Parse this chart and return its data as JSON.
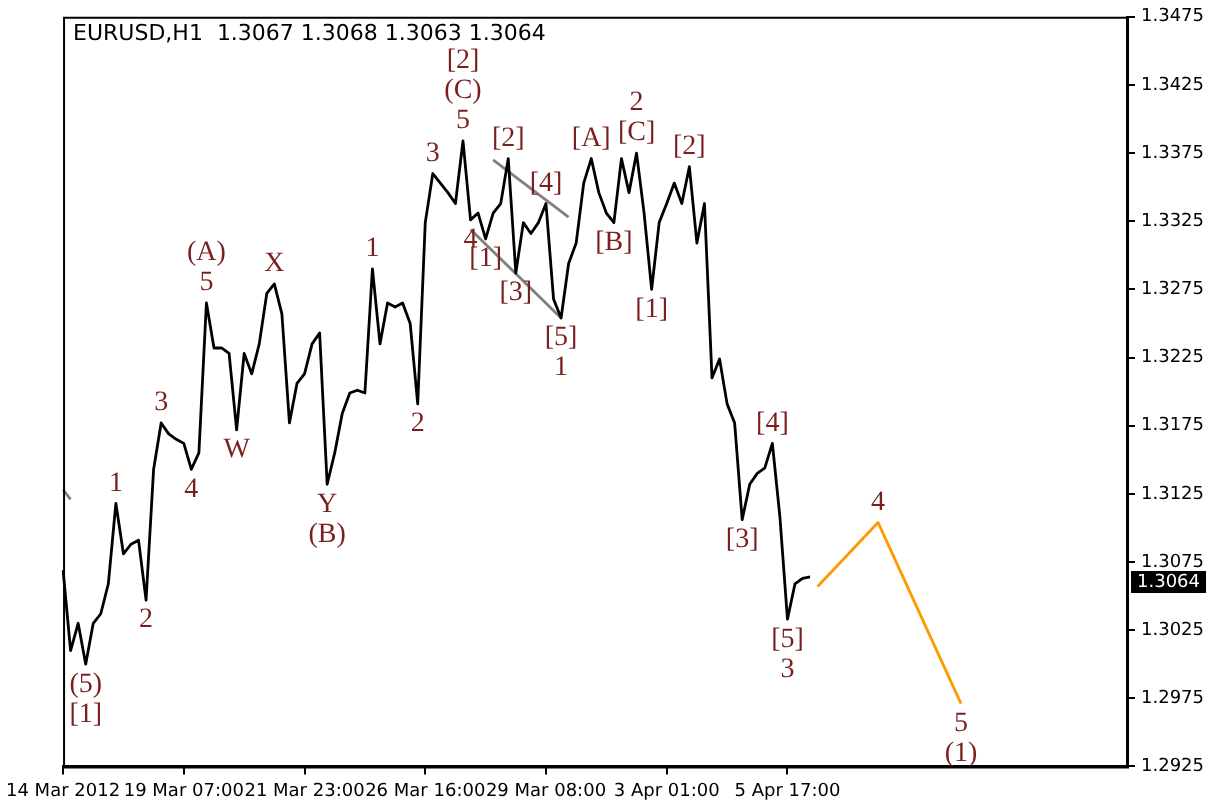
{
  "chart_data": {
    "type": "line",
    "title": "EURUSD,H1  1.3067 1.3068 1.3063 1.3064",
    "categories": [
      "14 Mar 2012",
      null,
      null,
      null,
      null,
      null,
      null,
      null,
      null,
      null,
      null,
      null,
      null,
      null,
      null,
      null,
      "19 Mar 07:00",
      null,
      null,
      null,
      null,
      null,
      null,
      null,
      null,
      null,
      null,
      null,
      null,
      null,
      null,
      null,
      "21 Mar 23:00",
      null,
      null,
      null,
      null,
      null,
      null,
      null,
      null,
      null,
      null,
      null,
      null,
      null,
      null,
      null,
      "26 Mar 16:00",
      null,
      null,
      null,
      null,
      null,
      null,
      null,
      null,
      null,
      null,
      null,
      null,
      null,
      null,
      null,
      "29 Mar 08:00",
      null,
      null,
      null,
      null,
      null,
      null,
      null,
      null,
      null,
      null,
      null,
      null,
      null,
      null,
      null,
      "3 Apr 01:00",
      null,
      null,
      null,
      null,
      null,
      null,
      null,
      null,
      null,
      null,
      null,
      null,
      null,
      null,
      null,
      "5 Apr 17:00",
      null,
      null,
      null,
      null,
      null,
      null,
      null,
      null,
      null,
      null,
      null,
      null,
      null,
      null,
      null,
      null,
      null,
      null,
      null,
      null,
      null,
      null,
      null,
      null,
      null,
      null,
      null,
      null,
      null,
      null,
      null,
      null,
      null,
      null,
      null,
      null,
      null,
      null,
      null,
      null,
      null,
      null,
      null,
      null,
      null
    ],
    "ylim": [
      1.2925,
      1.3475
    ],
    "yticks": [
      1.2925,
      1.2975,
      1.3025,
      1.3075,
      1.3125,
      1.3175,
      1.3225,
      1.3275,
      1.3325,
      1.3375,
      1.3425,
      1.3475
    ],
    "grid": false,
    "legend": false,
    "marker": "none",
    "line_style": "solid",
    "series": [
      {
        "color": "#000000",
        "values": [
          1.3069,
          1.301,
          1.303,
          1.3,
          1.303,
          1.3037,
          1.3059,
          1.3118,
          1.3081,
          1.3088,
          1.3091,
          1.3047,
          1.3143,
          1.3177,
          1.3169,
          1.3165,
          1.3162,
          1.3143,
          1.3155,
          1.3265,
          1.3232,
          1.3232,
          1.3228,
          1.3172,
          1.3228,
          1.3213,
          1.3235,
          1.3272,
          1.3279,
          1.3257,
          1.3177,
          1.3206,
          1.3213,
          1.3235,
          1.3243,
          1.3132,
          1.3155,
          1.3184,
          1.3199,
          1.3201,
          1.3199,
          1.329,
          1.3235,
          1.3265,
          1.3262,
          1.3265,
          1.325,
          1.3191,
          1.3324,
          1.336,
          1.3353,
          1.3346,
          1.3338,
          1.3384,
          1.3326,
          1.3331,
          1.3312,
          1.3331,
          1.3338,
          1.3371,
          1.3287,
          1.3324,
          1.3316,
          1.3324,
          1.3338,
          1.3268,
          1.3254,
          1.3294,
          1.3309,
          1.3353,
          1.3371,
          1.3346,
          1.3331,
          1.3324,
          1.3371,
          1.3346,
          1.3375,
          1.3331,
          1.3275,
          1.3324,
          1.3338,
          1.3353,
          1.3338,
          1.3365,
          1.3309,
          1.3338,
          1.321,
          1.3224,
          1.3191,
          1.3177,
          1.3106,
          1.3132,
          1.314,
          1.3144,
          1.3162,
          1.3108,
          1.3033,
          1.3059,
          1.3063,
          1.3064,
          null,
          null,
          null,
          null,
          null,
          null,
          null,
          null,
          null,
          null,
          null,
          null,
          null,
          null,
          null,
          null,
          null,
          null,
          null,
          null,
          null,
          null,
          null,
          null,
          null,
          null,
          null,
          null,
          null,
          null,
          null,
          null,
          null,
          null,
          null,
          null,
          null,
          null,
          null,
          null,
          null,
          null
        ]
      },
      {
        "color": "#ff9900",
        "values": [
          null,
          null,
          null,
          null,
          null,
          null,
          null,
          null,
          null,
          null,
          null,
          null,
          null,
          null,
          null,
          null,
          null,
          null,
          null,
          null,
          null,
          null,
          null,
          null,
          null,
          null,
          null,
          null,
          null,
          null,
          null,
          null,
          null,
          null,
          null,
          null,
          null,
          null,
          null,
          null,
          null,
          null,
          null,
          null,
          null,
          null,
          null,
          null,
          null,
          null,
          null,
          null,
          null,
          null,
          null,
          null,
          null,
          null,
          null,
          null,
          null,
          null,
          null,
          null,
          null,
          null,
          null,
          null,
          null,
          null,
          null,
          null,
          null,
          null,
          null,
          null,
          null,
          null,
          null,
          null,
          null,
          null,
          null,
          null,
          null,
          null,
          null,
          null,
          null,
          null,
          null,
          null,
          null,
          null,
          null,
          null,
          null,
          null,
          null,
          null,
          1.3057,
          null,
          null,
          null,
          null,
          null,
          null,
          null,
          1.3104,
          null,
          null,
          null,
          null,
          null,
          null,
          null,
          null,
          null,
          null,
          1.2971,
          null,
          null,
          null,
          null,
          null,
          null,
          null,
          null,
          null,
          null,
          null,
          null,
          null,
          null,
          null,
          null,
          null,
          null,
          null,
          null,
          null,
          null
        ]
      },
      {
        "color": "#808080",
        "values": [
          null,
          null,
          null,
          null,
          null,
          null,
          null,
          null,
          null,
          null,
          null,
          null,
          null,
          null,
          null,
          null,
          null,
          null,
          null,
          null,
          null,
          null,
          null,
          null,
          null,
          null,
          null,
          null,
          null,
          null,
          null,
          null,
          null,
          null,
          null,
          null,
          null,
          null,
          null,
          null,
          null,
          null,
          null,
          null,
          null,
          null,
          null,
          null,
          null,
          null,
          null,
          null,
          null,
          null,
          null,
          null,
          null,
          1.337,
          null,
          null,
          null,
          null,
          null,
          null,
          null,
          null,
          null,
          1.3328,
          null,
          null,
          null,
          null,
          null,
          null,
          null,
          null,
          null,
          null,
          null,
          null,
          null,
          null,
          null,
          null,
          null,
          null,
          null,
          null,
          null,
          null,
          null,
          null,
          null,
          null,
          null,
          null,
          null,
          null,
          null,
          null,
          null,
          null,
          null,
          null,
          null,
          null,
          null,
          null,
          null,
          null,
          null,
          null,
          null,
          null,
          null,
          null,
          null,
          null,
          null,
          null,
          null,
          null,
          null,
          null,
          null,
          null,
          null,
          null,
          null,
          null,
          null,
          null,
          null,
          null,
          null,
          null,
          null,
          null,
          null,
          null,
          null,
          null
        ]
      },
      {
        "color": "#808080",
        "values": [
          null,
          null,
          null,
          null,
          null,
          null,
          null,
          null,
          null,
          null,
          null,
          null,
          null,
          null,
          null,
          null,
          null,
          null,
          null,
          null,
          null,
          null,
          null,
          null,
          null,
          null,
          null,
          null,
          null,
          null,
          null,
          null,
          null,
          null,
          null,
          null,
          null,
          null,
          null,
          null,
          null,
          null,
          null,
          null,
          null,
          null,
          null,
          null,
          null,
          null,
          null,
          null,
          null,
          null,
          1.3319,
          null,
          null,
          null,
          null,
          null,
          null,
          null,
          null,
          null,
          null,
          null,
          1.3254,
          null,
          null,
          null,
          null,
          null,
          null,
          null,
          null,
          null,
          null,
          null,
          null,
          null,
          null,
          null,
          null,
          null,
          null,
          null,
          null,
          null,
          null,
          null,
          null,
          null,
          null,
          null,
          null,
          null,
          null,
          null,
          null,
          null,
          null,
          null,
          null,
          null,
          null,
          null,
          null,
          null,
          null,
          null,
          null,
          null,
          null,
          null,
          null,
          null,
          null,
          null,
          null,
          null,
          null,
          null,
          null,
          null,
          null,
          null,
          null,
          null,
          null,
          null,
          null,
          null,
          null,
          null,
          null,
          null,
          null,
          null,
          null,
          null,
          null,
          null
        ]
      },
      {
        "color": "#808080",
        "values": [
          1.3128,
          1.3121,
          null,
          null,
          null,
          null,
          null,
          null,
          null,
          null,
          null,
          null,
          null,
          null,
          null,
          null,
          null,
          null,
          null,
          null,
          null,
          null,
          null,
          null,
          null,
          null,
          null,
          null,
          null,
          null,
          null,
          null,
          null,
          null,
          null,
          null,
          null,
          null,
          null,
          null,
          null,
          null,
          null,
          null,
          null,
          null,
          null,
          null,
          null,
          null,
          null,
          null,
          null,
          null,
          null,
          null,
          null,
          null,
          null,
          null,
          null,
          null,
          null,
          null,
          null,
          null,
          null,
          null,
          null,
          null,
          null,
          null,
          null,
          null,
          null,
          null,
          null,
          null,
          null,
          null,
          null,
          null,
          null,
          null,
          null,
          null,
          null,
          null,
          null,
          null,
          null,
          null,
          null,
          null,
          null,
          null,
          null,
          null,
          null,
          null,
          null,
          null,
          null,
          null,
          null,
          null,
          null,
          null,
          null,
          null,
          null,
          null,
          null,
          null,
          null,
          null,
          null,
          null,
          null,
          null,
          null,
          null,
          null,
          null,
          null,
          null,
          null,
          null,
          null,
          null,
          null,
          null,
          null,
          null,
          null,
          null,
          null,
          null,
          null,
          null,
          null,
          null
        ]
      }
    ],
    "annotations": [
      {
        "text": "(5)",
        "y": 1.3
      },
      {
        "text": "[1]",
        "y": 1.3
      },
      {
        "text": "1",
        "y": 1.3118
      },
      {
        "text": "2",
        "y": 1.3047
      },
      {
        "text": "3",
        "y": 1.3177
      },
      {
        "text": "4",
        "y": 1.3143
      },
      {
        "text": "5",
        "y": 1.3265
      },
      {
        "text": "(A)",
        "y": 1.3265
      },
      {
        "text": "W",
        "y": 1.3172
      },
      {
        "text": "X",
        "y": 1.3279
      },
      {
        "text": "Y",
        "y": 1.3132
      },
      {
        "text": "(B)",
        "y": 1.3132
      },
      {
        "text": "1",
        "y": 1.329
      },
      {
        "text": "2",
        "y": 1.3191
      },
      {
        "text": "3",
        "y": 1.336
      },
      {
        "text": "5",
        "y": 1.3384
      },
      {
        "text": "(C)",
        "y": 1.3384
      },
      {
        "text": "[2]",
        "y": 1.3384
      },
      {
        "text": "4",
        "y": 1.3326
      },
      {
        "text": "[1]",
        "y": 1.3312
      },
      {
        "text": "[2]",
        "y": 1.3371
      },
      {
        "text": "[3]",
        "y": 1.3287
      },
      {
        "text": "[4]",
        "y": 1.3338
      },
      {
        "text": "[5]",
        "y": 1.3254
      },
      {
        "text": "1",
        "y": 1.3254
      },
      {
        "text": "[A]",
        "y": 1.3371
      },
      {
        "text": "[B]",
        "y": 1.3324
      },
      {
        "text": "[C]",
        "y": 1.3375
      },
      {
        "text": "2",
        "y": 1.3375
      },
      {
        "text": "[1]",
        "y": 1.3275
      },
      {
        "text": "[2]",
        "y": 1.3365
      },
      {
        "text": "[3]",
        "y": 1.3106
      },
      {
        "text": "[4]",
        "y": 1.3162
      },
      {
        "text": "[5]",
        "y": 1.3033
      },
      {
        "text": "3",
        "y": 1.3033
      },
      {
        "text": "4",
        "y": 1.3104
      },
      {
        "text": "5",
        "y": 1.2971
      },
      {
        "text": "(1)",
        "y": 1.2971
      },
      "1.3064"
    ]
  }
}
